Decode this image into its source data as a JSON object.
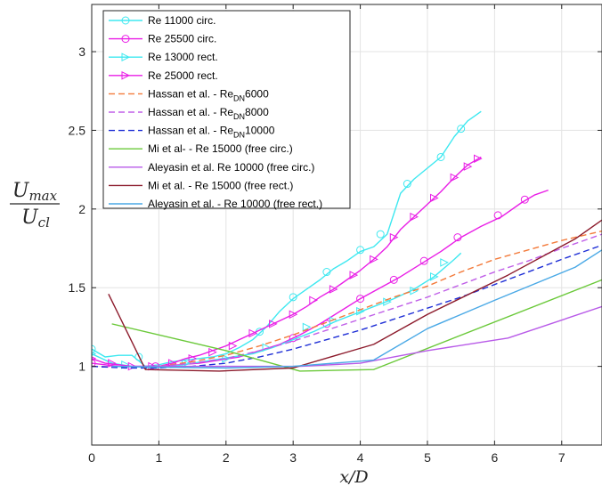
{
  "chart_data": {
    "type": "line",
    "title": "",
    "xlabel": "x/D",
    "ylabel": {
      "numerator": "U",
      "numerator_sub": "max",
      "denominator": "U",
      "denominator_sub": "cl"
    },
    "xlim": [
      0,
      7.6
    ],
    "ylim": [
      0.5,
      3.3
    ],
    "xticks": [
      0,
      1,
      2,
      3,
      4,
      5,
      6,
      7
    ],
    "yticks": [
      1,
      1.5,
      2,
      2.5,
      3
    ],
    "xtick_labels": [
      "0",
      "1",
      "2",
      "3",
      "4",
      "5",
      "6",
      "7"
    ],
    "ytick_labels": [
      "1",
      "1.5",
      "2",
      "2.5",
      "3"
    ],
    "grid": true,
    "legend_position": "top-left",
    "series": [
      {
        "name": "Re 11000 circ.",
        "color": "#3ee8f0",
        "dash": "solid",
        "marker": "circle",
        "x": [
          0,
          0.2,
          0.4,
          0.6,
          0.8,
          1.0,
          1.2,
          1.4,
          1.6,
          1.8,
          2.0,
          2.2,
          2.4,
          2.6,
          2.8,
          3.0,
          3.2,
          3.4,
          3.6,
          3.8,
          4.0,
          4.2,
          4.4,
          4.6,
          4.8,
          5.0,
          5.2,
          5.4,
          5.6,
          5.8
        ],
        "y": [
          1.11,
          1.06,
          1.07,
          1.07,
          1.0,
          1.01,
          1.03,
          1.04,
          1.05,
          1.06,
          1.08,
          1.12,
          1.17,
          1.25,
          1.35,
          1.43,
          1.49,
          1.55,
          1.62,
          1.67,
          1.73,
          1.76,
          1.84,
          2.1,
          2.19,
          2.26,
          2.33,
          2.46,
          2.56,
          2.62
        ],
        "marker_x": [
          0,
          0.7,
          2.5,
          3.0,
          3.5,
          4.0,
          4.3,
          4.7,
          5.2,
          5.5
        ],
        "marker_y": [
          1.11,
          1.06,
          1.22,
          1.44,
          1.6,
          1.74,
          1.84,
          2.16,
          2.33,
          2.51
        ]
      },
      {
        "name": "Re 25500 circ.",
        "color": "#e91ee6",
        "dash": "solid",
        "marker": "circle",
        "x": [
          0,
          0.2,
          0.4,
          0.6,
          0.8,
          1.0,
          1.3,
          1.6,
          1.9,
          2.2,
          2.5,
          2.8,
          3.1,
          3.4,
          3.7,
          4.0,
          4.3,
          4.6,
          4.9,
          5.2,
          5.5,
          5.8,
          6.1,
          6.4,
          6.6,
          6.8
        ],
        "y": [
          1.02,
          1.01,
          1.0,
          1.0,
          1.0,
          1.0,
          1.01,
          1.02,
          1.04,
          1.06,
          1.1,
          1.14,
          1.2,
          1.27,
          1.35,
          1.43,
          1.5,
          1.57,
          1.65,
          1.73,
          1.82,
          1.89,
          1.95,
          2.04,
          2.09,
          2.12
        ],
        "marker_x": [
          0,
          0.95,
          3.0,
          3.5,
          4.0,
          4.5,
          4.95,
          5.45,
          6.05,
          6.45
        ],
        "marker_y": [
          1.02,
          1.0,
          1.18,
          1.27,
          1.43,
          1.55,
          1.67,
          1.82,
          1.96,
          2.06
        ]
      },
      {
        "name": "Re 13000 rect.",
        "color": "#3ee8f0",
        "dash": "solid",
        "marker": "triangle-right",
        "x": [
          0,
          0.3,
          0.6,
          0.9,
          1.2,
          1.5,
          1.8,
          2.1,
          2.4,
          2.7,
          3.0,
          3.3,
          3.6,
          3.9,
          4.2,
          4.5,
          4.8,
          5.1,
          5.4,
          5.5
        ],
        "y": [
          1.08,
          1.02,
          1.0,
          0.99,
          1.0,
          1.02,
          1.04,
          1.06,
          1.08,
          1.12,
          1.17,
          1.22,
          1.28,
          1.33,
          1.38,
          1.43,
          1.49,
          1.57,
          1.68,
          1.72
        ],
        "marker_x": [
          0,
          0.5,
          1.4,
          2.0,
          2.6,
          3.2,
          3.6,
          4.0,
          4.4,
          4.8,
          5.1,
          5.25
        ],
        "marker_y": [
          1.08,
          1.01,
          1.02,
          1.05,
          1.12,
          1.25,
          1.29,
          1.35,
          1.41,
          1.48,
          1.57,
          1.66
        ]
      },
      {
        "name": "Re 25000 rect.",
        "color": "#e91ee6",
        "dash": "solid",
        "marker": "triangle-right",
        "x": [
          0,
          0.2,
          0.4,
          0.6,
          0.8,
          1.0,
          1.2,
          1.4,
          1.6,
          1.8,
          2.0,
          2.2,
          2.4,
          2.6,
          2.8,
          3.0,
          3.2,
          3.4,
          3.6,
          3.8,
          4.0,
          4.2,
          4.4,
          4.6,
          4.8,
          5.0,
          5.2,
          5.4,
          5.6,
          5.8
        ],
        "y": [
          1.05,
          1.02,
          1.01,
          1.0,
          1.0,
          1.0,
          1.02,
          1.05,
          1.07,
          1.1,
          1.13,
          1.17,
          1.21,
          1.25,
          1.29,
          1.33,
          1.38,
          1.44,
          1.49,
          1.55,
          1.61,
          1.68,
          1.76,
          1.87,
          1.95,
          2.03,
          2.11,
          2.2,
          2.28,
          2.33
        ],
        "marker_x": [
          0,
          0.3,
          0.6,
          0.9,
          1.2,
          1.5,
          1.8,
          2.1,
          2.4,
          2.7,
          3.0,
          3.3,
          3.6,
          3.9,
          4.2,
          4.5,
          4.8,
          5.1,
          5.4,
          5.6,
          5.75
        ],
        "marker_y": [
          1.05,
          1.02,
          1.0,
          1.0,
          1.02,
          1.05,
          1.09,
          1.13,
          1.21,
          1.27,
          1.33,
          1.42,
          1.49,
          1.58,
          1.68,
          1.82,
          1.95,
          2.07,
          2.2,
          2.27,
          2.32
        ]
      },
      {
        "name": "Hassan et al. - Re_DN 6000",
        "color": "#f37a3a",
        "dash": "dashed",
        "marker": "none",
        "x": [
          0,
          0.5,
          1.0,
          1.5,
          2.0,
          2.5,
          3.0,
          3.5,
          4.0,
          4.5,
          5.0,
          5.5,
          6.0,
          6.5,
          7.0,
          7.6
        ],
        "y": [
          1.0,
          0.995,
          1.0,
          1.03,
          1.07,
          1.13,
          1.2,
          1.28,
          1.36,
          1.44,
          1.51,
          1.6,
          1.68,
          1.74,
          1.8,
          1.86
        ]
      },
      {
        "name": "Hassan et al. - Re_DN 8000",
        "color": "#c05fe8",
        "dash": "dashed",
        "marker": "none",
        "x": [
          0,
          0.5,
          1.0,
          1.5,
          2.0,
          2.5,
          3.0,
          3.5,
          4.0,
          4.5,
          5.0,
          5.5,
          6.0,
          6.5,
          7.0,
          7.6
        ],
        "y": [
          1.0,
          0.995,
          1.0,
          1.02,
          1.05,
          1.1,
          1.16,
          1.23,
          1.3,
          1.37,
          1.44,
          1.52,
          1.6,
          1.67,
          1.75,
          1.84
        ]
      },
      {
        "name": "Hassan et al. - Re_DN 10000",
        "color": "#1f2fd6",
        "dash": "dashed",
        "marker": "none",
        "x": [
          0,
          0.5,
          1.0,
          1.5,
          2.0,
          2.5,
          3.0,
          3.5,
          4.0,
          4.5,
          5.0,
          5.5,
          6.0,
          6.5,
          7.0,
          7.6
        ],
        "y": [
          1.0,
          0.99,
          0.99,
          1.0,
          1.02,
          1.06,
          1.11,
          1.17,
          1.23,
          1.3,
          1.37,
          1.44,
          1.52,
          1.6,
          1.68,
          1.77
        ]
      },
      {
        "name": "Mi et al- - Re 15000 (free circ.)",
        "color": "#6bc93a",
        "dash": "solid",
        "marker": "none",
        "x": [
          0.3,
          2.0,
          3.1,
          4.2,
          7.6
        ],
        "y": [
          1.27,
          1.1,
          0.97,
          0.98,
          1.55
        ]
      },
      {
        "name": "Aleyasin et al. Re 10000 (free circ.)",
        "color": "#b85ae8",
        "dash": "solid",
        "marker": "none",
        "x": [
          0.3,
          2.0,
          3.1,
          4.0,
          5.0,
          6.2,
          7.6
        ],
        "y": [
          1.0,
          1.0,
          1.0,
          1.02,
          1.1,
          1.18,
          1.38
        ]
      },
      {
        "name": "Mi et al. - Re 15000 (free rect.)",
        "color": "#8c1a2b",
        "dash": "solid",
        "marker": "none",
        "x": [
          0.25,
          0.8,
          1.9,
          3.0,
          4.2,
          5.0,
          6.2,
          7.2,
          7.6
        ],
        "y": [
          1.46,
          0.98,
          0.97,
          0.99,
          1.14,
          1.33,
          1.58,
          1.81,
          1.93
        ]
      },
      {
        "name": "Aleyasin et al. - Re 10000 (free rect.)",
        "color": "#4aa9e6",
        "dash": "solid",
        "marker": "none",
        "x": [
          0.3,
          1.0,
          2.0,
          3.0,
          4.2,
          5.0,
          6.0,
          7.2,
          7.6
        ],
        "y": [
          1.0,
          0.995,
          0.99,
          1.0,
          1.04,
          1.24,
          1.42,
          1.63,
          1.74
        ]
      }
    ]
  }
}
